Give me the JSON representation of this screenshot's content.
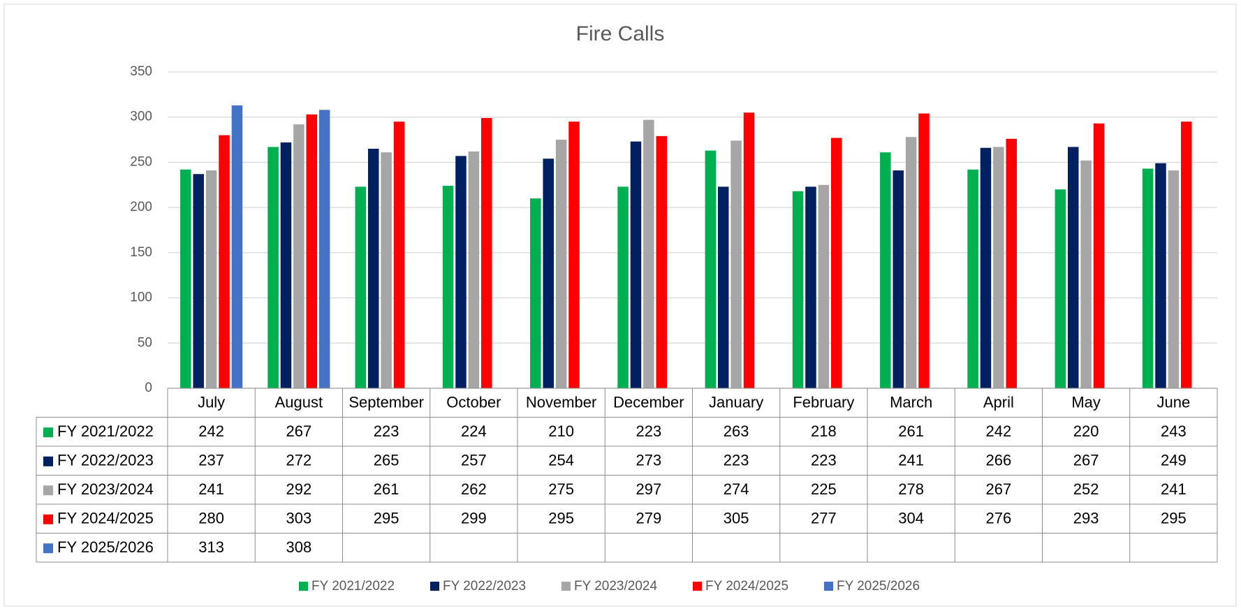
{
  "chart_data": {
    "type": "bar",
    "title": "Fire Calls",
    "categories": [
      "July",
      "August",
      "September",
      "October",
      "November",
      "December",
      "January",
      "February",
      "March",
      "April",
      "May",
      "June"
    ],
    "series": [
      {
        "name": "FY 2021/2022",
        "color": "#00b050",
        "values": [
          242,
          267,
          223,
          224,
          210,
          223,
          263,
          218,
          261,
          242,
          220,
          243
        ]
      },
      {
        "name": "FY 2022/2023",
        "color": "#002060",
        "values": [
          237,
          272,
          265,
          257,
          254,
          273,
          223,
          223,
          241,
          266,
          267,
          249
        ]
      },
      {
        "name": "FY 2023/2024",
        "color": "#a6a6a6",
        "values": [
          241,
          292,
          261,
          262,
          275,
          297,
          274,
          225,
          278,
          267,
          252,
          241
        ]
      },
      {
        "name": "FY 2024/2025",
        "color": "#ff0000",
        "values": [
          280,
          303,
          295,
          299,
          295,
          279,
          305,
          277,
          304,
          276,
          293,
          295
        ]
      },
      {
        "name": "FY 2025/2026",
        "color": "#4472c4",
        "values": [
          313,
          308,
          null,
          null,
          null,
          null,
          null,
          null,
          null,
          null,
          null,
          null
        ]
      }
    ],
    "ylim": [
      0,
      350
    ],
    "yticks": [
      0,
      50,
      100,
      150,
      200,
      250,
      300,
      350
    ],
    "grid": true,
    "legend": "bottom",
    "data_table": true
  }
}
